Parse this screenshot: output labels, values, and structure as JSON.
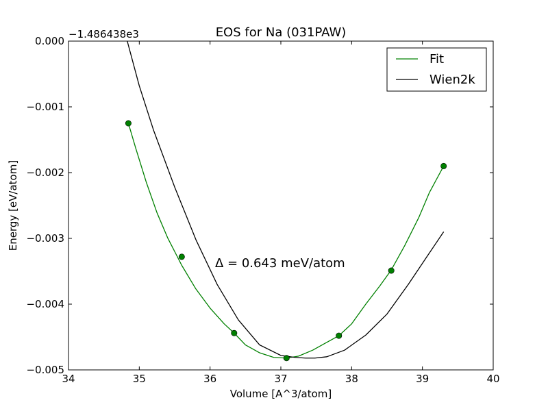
{
  "chart_data": {
    "type": "line",
    "title": "EOS for Na (031PAW)",
    "xlabel": "Volume [A^3/atom]",
    "ylabel": "Energy [eV/atom]",
    "y_offset_text": "−1.486438e3",
    "annotation": "Δ = 0.643 meV/atom",
    "xlim": [
      34,
      40
    ],
    "ylim": [
      -0.005,
      0.0
    ],
    "x_ticks": [
      34,
      35,
      36,
      37,
      38,
      39,
      40
    ],
    "x_tick_labels": [
      "34",
      "35",
      "36",
      "37",
      "38",
      "39",
      "40"
    ],
    "y_ticks": [
      0.0,
      -0.001,
      -0.002,
      -0.003,
      -0.004,
      -0.005
    ],
    "y_tick_labels": [
      "0.000",
      "−0.001",
      "−0.002",
      "−0.003",
      "−0.004",
      "−0.005"
    ],
    "grid": false,
    "legend_position": "top-right",
    "series": [
      {
        "name": "Fit",
        "color": "#008000",
        "marker": "line",
        "x": [
          34.846,
          34.95,
          35.1,
          35.25,
          35.4,
          35.6,
          35.8,
          36.0,
          36.2,
          36.34,
          36.5,
          36.7,
          36.9,
          37.08,
          37.25,
          37.45,
          37.6,
          37.82,
          38.0,
          38.2,
          38.4,
          38.56,
          38.75,
          38.95,
          39.1,
          39.3
        ],
        "y": [
          -0.00125,
          -0.00163,
          -0.00215,
          -0.00261,
          -0.00299,
          -0.00341,
          -0.00377,
          -0.00406,
          -0.0043,
          -0.00444,
          -0.00462,
          -0.00474,
          -0.00481,
          -0.00482,
          -0.00479,
          -0.0047,
          -0.00461,
          -0.00448,
          -0.0043,
          -0.004,
          -0.00372,
          -0.00348,
          -0.00311,
          -0.00268,
          -0.0023,
          -0.0019
        ]
      },
      {
        "name": "Wien2k",
        "color": "#000000",
        "marker": "line",
        "x": [
          34.83,
          35.0,
          35.2,
          35.5,
          35.8,
          36.1,
          36.4,
          36.7,
          37.0,
          37.2,
          37.35,
          37.48,
          37.65,
          37.9,
          38.2,
          38.5,
          38.8,
          39.05,
          39.3
        ],
        "y": [
          0.0,
          -0.00068,
          -0.00135,
          -0.00222,
          -0.00302,
          -0.0037,
          -0.00424,
          -0.00462,
          -0.00478,
          -0.00481,
          -0.00482,
          -0.00482,
          -0.0048,
          -0.0047,
          -0.00447,
          -0.00415,
          -0.0037,
          -0.0033,
          -0.0029
        ]
      },
      {
        "name": "",
        "color": "#008000",
        "marker": "circle",
        "x": [
          34.846,
          35.6,
          36.34,
          37.08,
          37.82,
          38.56,
          39.3
        ],
        "y": [
          -0.00125,
          -0.00328,
          -0.00444,
          -0.00482,
          -0.00448,
          -0.00349,
          -0.0019
        ]
      }
    ]
  }
}
